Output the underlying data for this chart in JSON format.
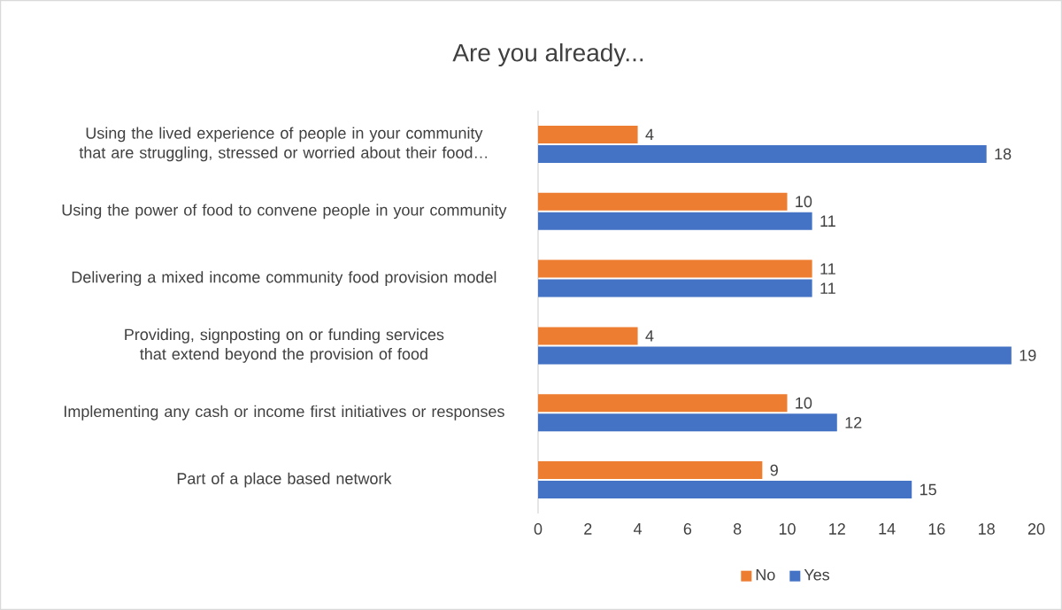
{
  "chart_data": {
    "type": "bar",
    "orientation": "horizontal",
    "title": "Are you already...",
    "categories": [
      "Using the lived experience of people in your community that are struggling, stressed or worried about their food…",
      "Using the power of food to convene people in your community",
      "Delivering a mixed income community food provision model",
      "Providing, signposting on or funding services that extend beyond the provision of food",
      "Implementing any cash or income first initiatives or responses",
      "Part of a place based network"
    ],
    "series": [
      {
        "name": "No",
        "color": "#ed7d31",
        "values": [
          4,
          10,
          11,
          4,
          10,
          9
        ],
        "value_labels": [
          "4",
          "10",
          "11",
          "4",
          "10",
          "9"
        ]
      },
      {
        "name": "Yes",
        "color": "#4472c4",
        "values": [
          18,
          11,
          11,
          19,
          12,
          15
        ],
        "value_labels": [
          "18",
          "11",
          "11",
          "19",
          "12",
          "15"
        ]
      }
    ],
    "xlim": [
      0,
      20
    ],
    "xticks": [
      0,
      2,
      4,
      6,
      8,
      10,
      12,
      14,
      16,
      18,
      20
    ],
    "grid": false,
    "legend": "bottom"
  }
}
